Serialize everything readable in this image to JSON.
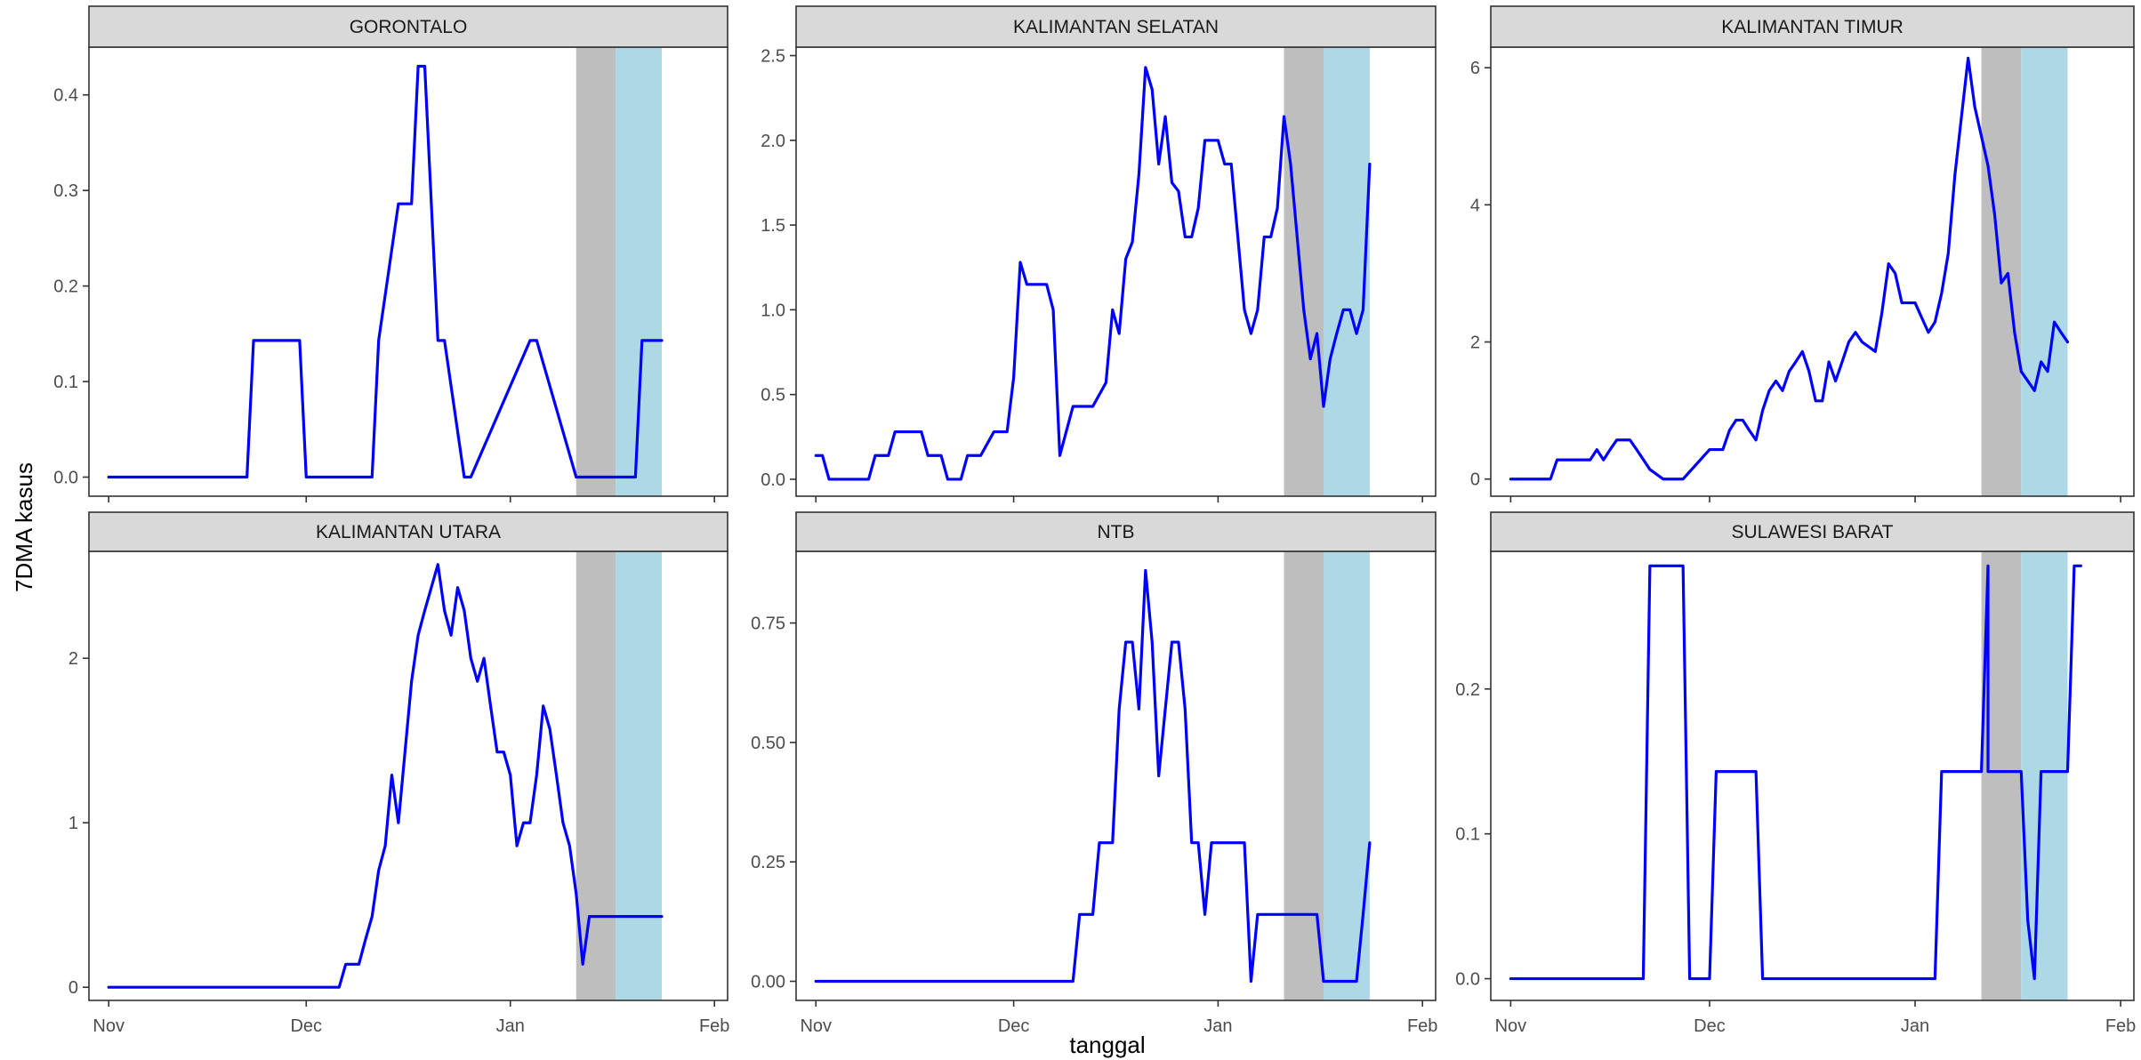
{
  "chart_data": {
    "type": "line",
    "layout": "facet-grid 2x3",
    "xlabel": "tanggal",
    "ylabel": "7DMA kasus",
    "x_tick_labels": [
      "Nov",
      "Dec",
      "Jan",
      "Feb"
    ],
    "x_ticks": [
      "2020-11-01",
      "2020-12-01",
      "2021-01-01",
      "2021-02-01"
    ],
    "xlim": [
      "2020-10-29",
      "2021-02-03"
    ],
    "grid": false,
    "line_color": "#0000ff",
    "shaded_bands": [
      {
        "from": "2021-01-11",
        "to": "2021-01-17",
        "color": "#bebebe"
      },
      {
        "from": "2021-01-17",
        "to": "2021-01-24",
        "color": "#add8e6"
      }
    ],
    "panels": [
      {
        "title": "GORONTALO",
        "ylim": [
          -0.02,
          0.45
        ],
        "y_ticks": [
          0.0,
          0.1,
          0.2,
          0.3,
          0.4
        ],
        "y_tick_labels": [
          "0.0",
          "0.1",
          "0.2",
          "0.3",
          "0.4"
        ],
        "x": [
          "2020-11-01",
          "2020-11-22",
          "2020-11-23",
          "2020-11-30",
          "2020-12-01",
          "2020-12-11",
          "2020-12-12",
          "2020-12-15",
          "2020-12-16",
          "2020-12-17",
          "2020-12-18",
          "2020-12-19",
          "2020-12-21",
          "2020-12-22",
          "2020-12-25",
          "2020-12-26",
          "2021-01-04",
          "2021-01-05",
          "2021-01-11",
          "2021-01-12",
          "2021-01-20",
          "2021-01-21",
          "2021-01-24"
        ],
        "y": [
          0,
          0,
          0.143,
          0.143,
          0,
          0,
          0.143,
          0.286,
          0.286,
          0.286,
          0.43,
          0.43,
          0.143,
          0.143,
          0,
          0,
          0.143,
          0.143,
          0,
          0,
          0,
          0.143,
          0.143
        ]
      },
      {
        "title": "KALIMANTAN SELATAN",
        "ylim": [
          -0.1,
          2.55
        ],
        "y_ticks": [
          0.0,
          0.5,
          1.0,
          1.5,
          2.0,
          2.5
        ],
        "y_tick_labels": [
          "0.0",
          "0.5",
          "1.0",
          "1.5",
          "2.0",
          "2.5"
        ],
        "x": [
          "2020-11-01",
          "2020-11-02",
          "2020-11-03",
          "2020-11-09",
          "2020-11-10",
          "2020-11-12",
          "2020-11-13",
          "2020-11-17",
          "2020-11-18",
          "2020-11-20",
          "2020-11-21",
          "2020-11-23",
          "2020-11-24",
          "2020-11-26",
          "2020-11-28",
          "2020-11-29",
          "2020-11-30",
          "2020-12-01",
          "2020-12-02",
          "2020-12-03",
          "2020-12-06",
          "2020-12-07",
          "2020-12-08",
          "2020-12-10",
          "2020-12-11",
          "2020-12-13",
          "2020-12-15",
          "2020-12-16",
          "2020-12-17",
          "2020-12-18",
          "2020-12-19",
          "2020-12-20",
          "2020-12-21",
          "2020-12-22",
          "2020-12-23",
          "2020-12-24",
          "2020-12-25",
          "2020-12-26",
          "2020-12-27",
          "2020-12-28",
          "2020-12-29",
          "2020-12-30",
          "2020-12-31",
          "2021-01-01",
          "2021-01-02",
          "2021-01-03",
          "2021-01-04",
          "2021-01-05",
          "2021-01-06",
          "2021-01-07",
          "2021-01-08",
          "2021-01-09",
          "2021-01-10",
          "2021-01-11",
          "2021-01-12",
          "2021-01-13",
          "2021-01-14",
          "2021-01-15",
          "2021-01-16",
          "2021-01-17",
          "2021-01-18",
          "2021-01-19",
          "2021-01-20",
          "2021-01-21",
          "2021-01-22",
          "2021-01-23",
          "2021-01-24"
        ],
        "y": [
          0.14,
          0.14,
          0.0,
          0.0,
          0.14,
          0.14,
          0.28,
          0.28,
          0.14,
          0.14,
          0.0,
          0.0,
          0.14,
          0.14,
          0.28,
          0.28,
          0.28,
          0.6,
          1.28,
          1.15,
          1.15,
          1.0,
          0.14,
          0.43,
          0.43,
          0.43,
          0.57,
          1.0,
          0.86,
          1.3,
          1.4,
          1.8,
          2.43,
          2.3,
          1.86,
          2.14,
          1.75,
          1.7,
          1.43,
          1.43,
          1.6,
          2.0,
          2.0,
          2.0,
          1.86,
          1.86,
          1.43,
          1.0,
          0.86,
          1.0,
          1.43,
          1.43,
          1.6,
          2.14,
          1.86,
          1.43,
          1.0,
          0.71,
          0.86,
          0.43,
          0.71,
          0.86,
          1.0,
          1.0,
          0.86,
          1.0,
          1.86
        ]
      },
      {
        "title": "KALIMANTAN TIMUR",
        "ylim": [
          -0.25,
          6.3
        ],
        "y_ticks": [
          0,
          2,
          4,
          6
        ],
        "y_tick_labels": [
          "0",
          "2",
          "4",
          "6"
        ],
        "x": [
          "2020-11-01",
          "2020-11-07",
          "2020-11-08",
          "2020-11-13",
          "2020-11-14",
          "2020-11-15",
          "2020-11-16",
          "2020-11-17",
          "2020-11-19",
          "2020-11-20",
          "2020-11-22",
          "2020-11-24",
          "2020-11-26",
          "2020-11-27",
          "2020-12-01",
          "2020-12-02",
          "2020-12-03",
          "2020-12-04",
          "2020-12-05",
          "2020-12-06",
          "2020-12-07",
          "2020-12-08",
          "2020-12-09",
          "2020-12-10",
          "2020-12-11",
          "2020-12-12",
          "2020-12-13",
          "2020-12-14",
          "2020-12-15",
          "2020-12-16",
          "2020-12-17",
          "2020-12-18",
          "2020-12-19",
          "2020-12-20",
          "2020-12-21",
          "2020-12-22",
          "2020-12-23",
          "2020-12-24",
          "2020-12-26",
          "2020-12-27",
          "2020-12-28",
          "2020-12-29",
          "2020-12-30",
          "2020-12-31",
          "2021-01-01",
          "2021-01-03",
          "2021-01-04",
          "2021-01-05",
          "2021-01-06",
          "2021-01-07",
          "2021-01-08",
          "2021-01-09",
          "2021-01-10",
          "2021-01-11",
          "2021-01-12",
          "2021-01-13",
          "2021-01-14",
          "2021-01-15",
          "2021-01-16",
          "2021-01-17",
          "2021-01-18",
          "2021-01-19",
          "2021-01-20",
          "2021-01-21",
          "2021-01-22",
          "2021-01-23",
          "2021-01-24"
        ],
        "y": [
          0,
          0,
          0.28,
          0.28,
          0.43,
          0.28,
          0.43,
          0.57,
          0.57,
          0.43,
          0.14,
          0,
          0,
          0,
          0.43,
          0.43,
          0.43,
          0.71,
          0.86,
          0.86,
          0.71,
          0.57,
          1.0,
          1.29,
          1.43,
          1.29,
          1.57,
          1.71,
          1.86,
          1.57,
          1.14,
          1.14,
          1.71,
          1.43,
          1.71,
          2.0,
          2.14,
          2.0,
          1.86,
          2.43,
          3.14,
          3.0,
          2.57,
          2.57,
          2.57,
          2.14,
          2.29,
          2.71,
          3.29,
          4.43,
          5.29,
          6.14,
          5.43,
          5.0,
          4.57,
          3.86,
          2.86,
          3.0,
          2.14,
          1.57,
          1.43,
          1.29,
          1.71,
          1.57,
          2.29,
          2.14,
          2.0
        ]
      },
      {
        "title": "KALIMANTAN UTARA",
        "ylim": [
          -0.08,
          2.65
        ],
        "y_ticks": [
          0,
          1,
          2
        ],
        "y_tick_labels": [
          "0",
          "1",
          "2"
        ],
        "x": [
          "2020-11-01",
          "2020-12-06",
          "2020-12-07",
          "2020-12-09",
          "2020-12-10",
          "2020-12-11",
          "2020-12-12",
          "2020-12-13",
          "2020-12-14",
          "2020-12-15",
          "2020-12-16",
          "2020-12-17",
          "2020-12-18",
          "2020-12-19",
          "2020-12-20",
          "2020-12-21",
          "2020-12-22",
          "2020-12-23",
          "2020-12-24",
          "2020-12-25",
          "2020-12-26",
          "2020-12-27",
          "2020-12-28",
          "2020-12-29",
          "2020-12-30",
          "2020-12-31",
          "2021-01-01",
          "2021-01-02",
          "2021-01-03",
          "2021-01-04",
          "2021-01-05",
          "2021-01-06",
          "2021-01-07",
          "2021-01-08",
          "2021-01-09",
          "2021-01-10",
          "2021-01-11",
          "2021-01-12",
          "2021-01-13",
          "2021-01-14",
          "2021-01-15",
          "2021-01-16",
          "2021-01-17",
          "2021-01-18",
          "2021-01-24"
        ],
        "y": [
          0,
          0,
          0.14,
          0.14,
          0.29,
          0.43,
          0.71,
          0.86,
          1.29,
          1.0,
          1.43,
          1.86,
          2.14,
          2.29,
          2.43,
          2.57,
          2.29,
          2.14,
          2.43,
          2.29,
          2.0,
          1.86,
          2.0,
          1.71,
          1.43,
          1.43,
          1.29,
          0.86,
          1.0,
          1.0,
          1.29,
          1.71,
          1.57,
          1.29,
          1.0,
          0.86,
          0.57,
          0.14,
          0.43,
          0.43,
          0.43,
          0.43,
          0.43,
          0.43,
          0.43
        ]
      },
      {
        "title": "NTB",
        "ylim": [
          -0.04,
          0.9
        ],
        "y_ticks": [
          0.0,
          0.25,
          0.5,
          0.75
        ],
        "y_tick_labels": [
          "0.00",
          "0.25",
          "0.50",
          "0.75"
        ],
        "x": [
          "2020-11-01",
          "2020-12-10",
          "2020-12-11",
          "2020-12-13",
          "2020-12-14",
          "2020-12-16",
          "2020-12-17",
          "2020-12-18",
          "2020-12-19",
          "2020-12-20",
          "2020-12-21",
          "2020-12-22",
          "2020-12-23",
          "2020-12-24",
          "2020-12-25",
          "2020-12-26",
          "2020-12-27",
          "2020-12-28",
          "2020-12-29",
          "2020-12-30",
          "2020-12-31",
          "2021-01-01",
          "2021-01-02",
          "2021-01-03",
          "2021-01-05",
          "2021-01-06",
          "2021-01-07",
          "2021-01-08",
          "2021-01-10",
          "2021-01-11",
          "2021-01-16",
          "2021-01-17",
          "2021-01-22",
          "2021-01-23",
          "2021-01-24"
        ],
        "y": [
          0,
          0,
          0.14,
          0.14,
          0.29,
          0.29,
          0.57,
          0.71,
          0.71,
          0.57,
          0.86,
          0.71,
          0.43,
          0.57,
          0.71,
          0.71,
          0.57,
          0.29,
          0.29,
          0.14,
          0.29,
          0.29,
          0.29,
          0.29,
          0.29,
          0,
          0.14,
          0.14,
          0.14,
          0.14,
          0.14,
          0,
          0,
          0.14,
          0.29
        ]
      },
      {
        "title": "SULAWESI BARAT",
        "ylim": [
          -0.015,
          0.295
        ],
        "y_ticks": [
          0.0,
          0.1,
          0.2
        ],
        "y_tick_labels": [
          "0.0",
          "0.1",
          "0.2"
        ],
        "x": [
          "2020-11-01",
          "2020-11-21",
          "2020-11-22",
          "2020-11-27",
          "2020-11-28",
          "2020-12-01",
          "2020-12-02",
          "2020-12-08",
          "2020-12-09",
          "2021-01-04",
          "2021-01-05",
          "2021-01-11",
          "2021-01-12",
          "2021-01-12",
          "2021-01-13",
          "2021-01-14",
          "2021-01-17",
          "2021-01-18",
          "2021-01-19",
          "2021-01-20",
          "2021-01-24",
          "2021-01-25",
          "2021-01-26"
        ],
        "y": [
          0,
          0,
          0.285,
          0.285,
          0,
          0,
          0.143,
          0.143,
          0,
          0,
          0.143,
          0.143,
          0.285,
          0.143,
          0.143,
          0.143,
          0.143,
          0.04,
          0,
          0.143,
          0.143,
          0.285,
          0.285
        ]
      }
    ]
  }
}
